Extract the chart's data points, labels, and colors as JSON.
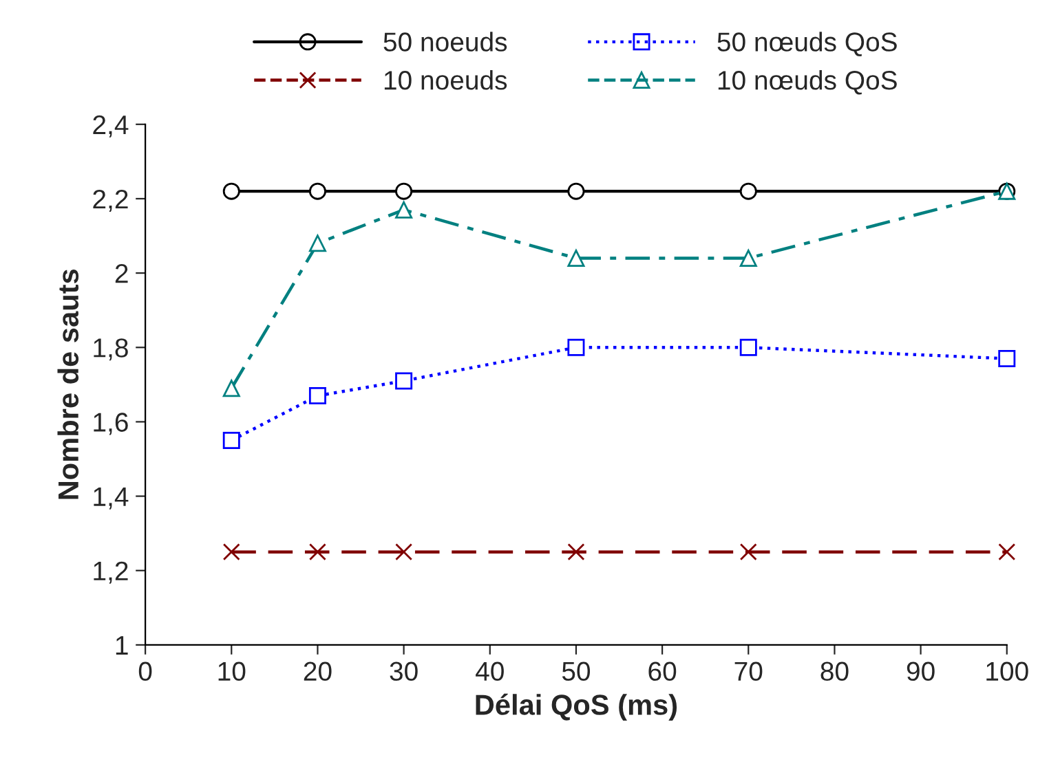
{
  "chart_data": {
    "type": "line",
    "xlabel": "Délai QoS (ms)",
    "ylabel": "Nombre de sauts",
    "x": [
      10,
      20,
      30,
      50,
      70,
      100
    ],
    "series": [
      {
        "name": "50 noeuds",
        "color": "#000000",
        "marker": "circle",
        "line_style": "solid",
        "values": [
          2.22,
          2.22,
          2.22,
          2.22,
          2.22,
          2.22
        ]
      },
      {
        "name": "10 noeuds",
        "color": "#800000",
        "marker": "cross",
        "line_style": "dashed",
        "values": [
          1.25,
          1.25,
          1.25,
          1.25,
          1.25,
          1.25
        ]
      },
      {
        "name": "50 nœuds QoS",
        "color": "#0000ff",
        "marker": "square",
        "line_style": "dotted",
        "values": [
          1.55,
          1.67,
          1.71,
          1.8,
          1.8,
          1.77
        ]
      },
      {
        "name": "10 nœuds QoS",
        "color": "#008080",
        "marker": "triangle",
        "line_style": "dashdot",
        "values": [
          1.69,
          2.08,
          2.17,
          2.04,
          2.04,
          2.22
        ]
      }
    ],
    "xlim": [
      0,
      100
    ],
    "xticks": [
      0,
      10,
      20,
      30,
      40,
      50,
      60,
      70,
      80,
      90,
      100
    ],
    "ylim": [
      1,
      2.4
    ],
    "yticks": [
      1,
      {
        "value": 1.2,
        "label": "1,2"
      },
      {
        "value": 1.4,
        "label": "1,4"
      },
      {
        "value": 1.6,
        "label": "1,6"
      },
      {
        "value": 1.8,
        "label": "1,8"
      },
      2,
      {
        "value": 2.2,
        "label": "2,2"
      },
      {
        "value": 2.4,
        "label": "2,4"
      }
    ],
    "grid": false,
    "legend": "top"
  }
}
